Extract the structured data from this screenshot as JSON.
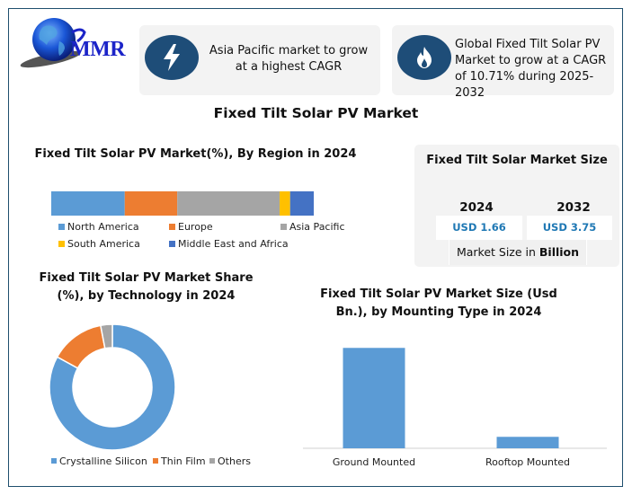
{
  "brand": {
    "logo_text": "MMR"
  },
  "highlights": [
    {
      "icon": "lightning-bolt-icon",
      "text": "Asia Pacific market to grow at a highest CAGR"
    },
    {
      "icon": "flame-icon",
      "text": "Global Fixed Tilt Solar PV Market to grow at a CAGR of 10.71% during 2025-2032"
    }
  ],
  "main_title": "Fixed Tilt Solar PV Market",
  "market_size": {
    "title": "Fixed Tilt Solar Market Size",
    "years": [
      {
        "year": "2024",
        "value": "USD 1.66"
      },
      {
        "year": "2032",
        "value": "USD 3.75"
      }
    ],
    "unit_prefix": "Market Size in ",
    "unit_bold": "Billion"
  },
  "colors": {
    "north_america": "#5b9bd5",
    "europe": "#ed7d31",
    "asia_pacific": "#a5a5a5",
    "south_america": "#ffc000",
    "mea": "#4472c4",
    "icon_circle": "#1e4d78",
    "value_text": "#1f78b4"
  },
  "chart_data": [
    {
      "type": "bar",
      "subtype": "stacked-100-horizontal",
      "title": "Fixed Tilt Solar PV Market(%), By Region in 2024",
      "categories": [
        "2024"
      ],
      "series": [
        {
          "name": "North America",
          "values": [
            28
          ],
          "color": "#5b9bd5"
        },
        {
          "name": "Europe",
          "values": [
            20
          ],
          "color": "#ed7d31"
        },
        {
          "name": "Asia Pacific",
          "values": [
            39
          ],
          "color": "#a5a5a5"
        },
        {
          "name": "South America",
          "values": [
            4
          ],
          "color": "#ffc000"
        },
        {
          "name": "Middle East and Africa",
          "values": [
            9
          ],
          "color": "#4472c4"
        }
      ],
      "xlim": [
        0,
        100
      ],
      "legend": "bottom",
      "grid": false
    },
    {
      "type": "pie",
      "subtype": "donut",
      "title": "Fixed Tilt Solar PV Market Share (%), by Technology in 2024",
      "categories": [
        "Crystalline Silicon",
        "Thin Film",
        "Others"
      ],
      "values": [
        83,
        14,
        3
      ],
      "colors": [
        "#5b9bd5",
        "#ed7d31",
        "#a5a5a5"
      ],
      "legend": "bottom"
    },
    {
      "type": "bar",
      "title": "Fixed Tilt Solar PV Market Size (Usd Bn.), by Mounting Type in 2024",
      "categories": [
        "Ground Mounted",
        "Rooftop Mounted"
      ],
      "values": [
        1.49,
        0.17
      ],
      "color": "#5b9bd5",
      "xlabel": "",
      "ylabel": "",
      "ylim": [
        0,
        1.6
      ],
      "grid": false
    }
  ]
}
